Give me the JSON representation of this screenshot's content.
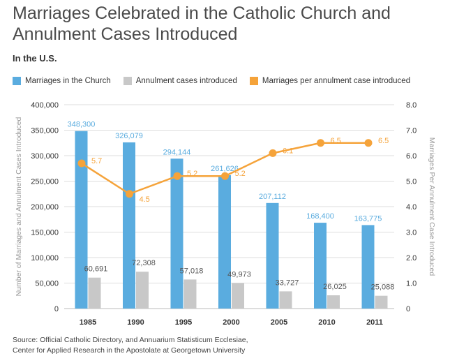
{
  "title": "Marriages Celebrated in the Catholic Church and Annulment Cases Introduced",
  "subtitle": "In the U.S.",
  "source_lines": [
    "Source: Official Catholic Directory, and Annuarium Statisticum Ecclesiae,",
    "Center for Applied Research in the Apostolate at Georgetown University"
  ],
  "colors": {
    "marriages": "#5aacdf",
    "annulments": "#c8c8c8",
    "ratio": "#f5a33a",
    "axis_text": "#333333",
    "axis_label": "#999999",
    "grid": "#dddddd"
  },
  "chart_data": {
    "type": "bar",
    "categories": [
      "1985",
      "1990",
      "1995",
      "2000",
      "2005",
      "2010",
      "2011"
    ],
    "series": [
      {
        "name": "Marriages in the Church",
        "type": "bar",
        "axis": "left",
        "values": [
          348300,
          326079,
          294144,
          261626,
          207112,
          168400,
          163775
        ],
        "labels": [
          "348,300",
          "326,079",
          "294,144",
          "261,626",
          "207,112",
          "168,400",
          "163,775"
        ]
      },
      {
        "name": "Annulment cases introduced",
        "type": "bar",
        "axis": "left",
        "values": [
          60691,
          72308,
          57018,
          49973,
          33727,
          26025,
          25088
        ],
        "labels": [
          "60,691",
          "72,308",
          "57,018",
          "49,973",
          "33,727",
          "26,025",
          "25,088"
        ]
      },
      {
        "name": "Marriages per annulment case introduced",
        "type": "line",
        "axis": "right",
        "values": [
          5.7,
          4.5,
          5.2,
          5.2,
          6.1,
          6.5,
          6.5
        ],
        "labels": [
          "5.7",
          "4.5",
          "5.2",
          "5.2",
          "6.1",
          "6.5",
          "6.5"
        ]
      }
    ],
    "ylabel_left": "Number of Marriages and Annulment Cases Introduced",
    "ylabel_right": "Marriages Per Annulment Case Introduced",
    "ylim_left": [
      0,
      400000
    ],
    "ylim_right": [
      0,
      8.0
    ],
    "yticks_left": [
      "0",
      "50,000",
      "100,000",
      "150,000",
      "200,000",
      "250,000",
      "300,000",
      "350,000",
      "400,000"
    ],
    "yticks_right": [
      "0",
      "1.0",
      "2.0",
      "3.0",
      "4.0",
      "5.0",
      "6.0",
      "7.0",
      "8.0"
    ],
    "grid": true,
    "legend": "top"
  }
}
